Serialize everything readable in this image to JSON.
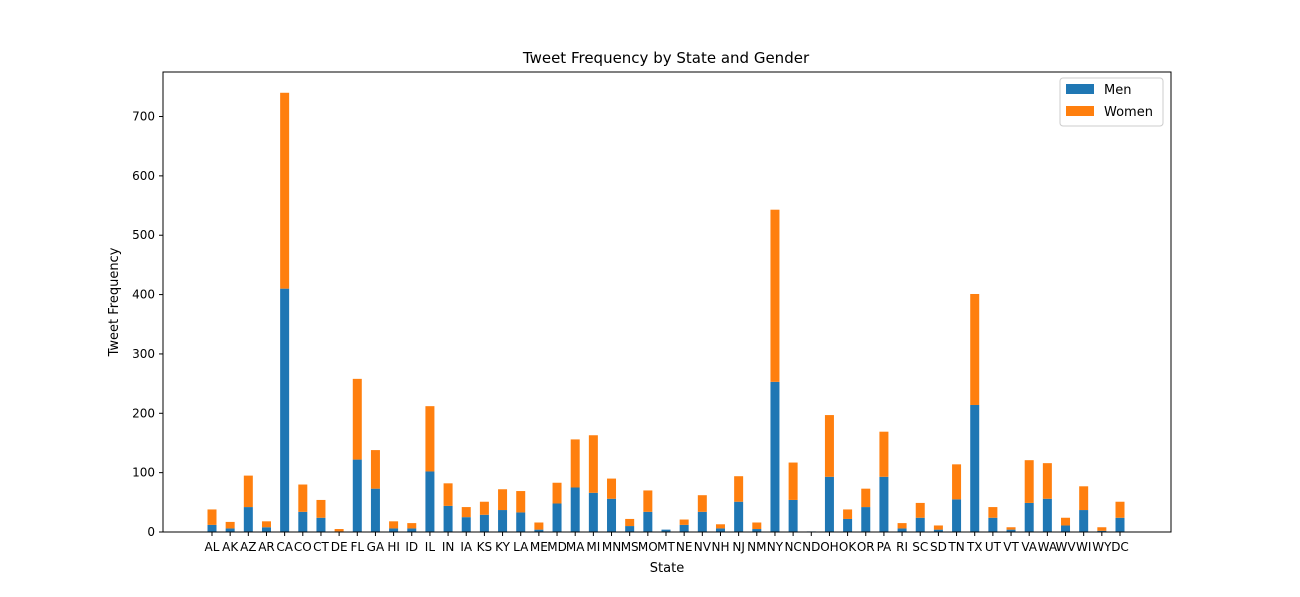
{
  "chart_data": {
    "type": "bar",
    "stacked": true,
    "title": "Tweet Frequency by State and Gender",
    "xlabel": "State",
    "ylabel": "Tweet Frequency",
    "ylim": [
      0,
      775
    ],
    "yticks": [
      0,
      100,
      200,
      300,
      400,
      500,
      600,
      700
    ],
    "grid": false,
    "legend": "top-right",
    "categories": [
      "AL",
      "AK",
      "AZ",
      "AR",
      "CA",
      "CO",
      "CT",
      "DE",
      "FL",
      "GA",
      "HI",
      "ID",
      "IL",
      "IN",
      "IA",
      "KS",
      "KY",
      "LA",
      "ME",
      "MD",
      "MA",
      "MI",
      "MN",
      "MS",
      "MO",
      "MT",
      "NE",
      "NV",
      "NH",
      "NJ",
      "NM",
      "NY",
      "NC",
      "ND",
      "OH",
      "OK",
      "OR",
      "PA",
      "RI",
      "SC",
      "SD",
      "TN",
      "TX",
      "UT",
      "VT",
      "VA",
      "WA",
      "WV",
      "WI",
      "WY",
      "DC"
    ],
    "series": [
      {
        "name": "Men",
        "color": "#1f77b4",
        "values": [
          12,
          6,
          42,
          8,
          410,
          34,
          24,
          1,
          122,
          73,
          6,
          6,
          102,
          44,
          25,
          29,
          37,
          33,
          4,
          48,
          75,
          66,
          56,
          10,
          34,
          4,
          12,
          34,
          6,
          51,
          5,
          253,
          54,
          1,
          93,
          22,
          42,
          93,
          6,
          24,
          4,
          55,
          214,
          24,
          4,
          49,
          56,
          11,
          37,
          2,
          24
        ]
      },
      {
        "name": "Women",
        "color": "#ff7f0e",
        "values": [
          26,
          11,
          53,
          10,
          330,
          46,
          30,
          4,
          136,
          65,
          12,
          9,
          110,
          38,
          17,
          22,
          35,
          36,
          12,
          35,
          81,
          97,
          34,
          12,
          36,
          0,
          9,
          28,
          7,
          43,
          11,
          290,
          63,
          0,
          104,
          16,
          31,
          76,
          9,
          25,
          7,
          59,
          187,
          18,
          4,
          72,
          60,
          13,
          40,
          6,
          27
        ]
      }
    ]
  }
}
